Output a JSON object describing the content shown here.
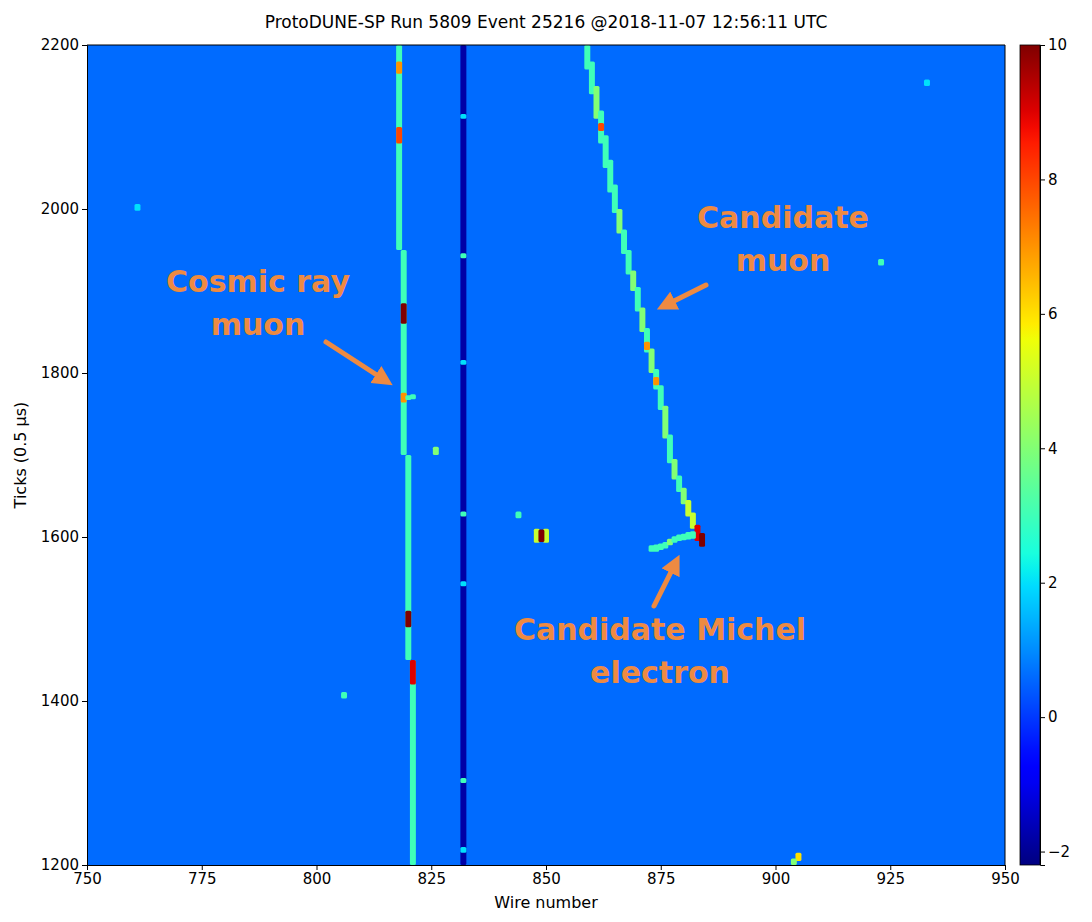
{
  "chart_data": {
    "type": "heatmap",
    "title": "ProtoDUNE-SP Run 5809 Event 25216 @2018-11-07 12:56:11 UTC",
    "x_label": "Wire number",
    "y_label": "Ticks (0.5 μs)",
    "xlim": [
      750,
      950
    ],
    "ylim": [
      1200,
      2200
    ],
    "xticks": [
      750,
      775,
      800,
      825,
      850,
      875,
      900,
      925,
      950
    ],
    "yticks": [
      1200,
      1400,
      1600,
      1800,
      2000,
      2200
    ],
    "grid": false,
    "background": 0.6,
    "colorbar": {
      "range": [
        -2.2,
        10
      ],
      "ticks": [
        {
          "value": -2,
          "label": "−2"
        },
        0,
        2,
        4,
        6,
        8,
        10
      ]
    },
    "cells": [
      {
        "wire": 818,
        "tick_start": 1950,
        "tick_end": 2200,
        "value": 3
      },
      {
        "wire": 819,
        "tick_start": 1700,
        "tick_end": 1950,
        "value": 3
      },
      {
        "wire": 820,
        "tick_start": 1450,
        "tick_end": 1700,
        "value": 3
      },
      {
        "wire": 821,
        "tick_start": 1200,
        "tick_end": 1450,
        "value": 3
      },
      {
        "wire": 818,
        "tick_start": 2080,
        "tick_end": 2100,
        "value": 8
      },
      {
        "wire": 818,
        "tick_start": 2165,
        "tick_end": 2180,
        "value": 7
      },
      {
        "wire": 819,
        "tick_start": 1860,
        "tick_end": 1885,
        "value": 10
      },
      {
        "wire": 819,
        "tick_start": 1764,
        "tick_end": 1776,
        "value": 7
      },
      {
        "wire": 820,
        "tick_start": 1767,
        "tick_end": 1773,
        "value": 3
      },
      {
        "wire": 821,
        "tick_start": 1768,
        "tick_end": 1774,
        "value": 3
      },
      {
        "wire": 820,
        "tick_start": 1490,
        "tick_end": 1510,
        "value": 10
      },
      {
        "wire": 821,
        "tick_start": 1420,
        "tick_end": 1450,
        "value": 9
      },
      {
        "wire": 826,
        "tick_start": 1700,
        "tick_end": 1710,
        "value": 4
      },
      {
        "wire": 832,
        "tick_start": 1200,
        "tick_end": 2200,
        "value": -1.8
      },
      {
        "wire": 832,
        "tick_start": 1215,
        "tick_end": 1222,
        "value": 2
      },
      {
        "wire": 832,
        "tick_start": 1300,
        "tick_end": 1306,
        "value": 3
      },
      {
        "wire": 832,
        "tick_start": 1540,
        "tick_end": 1546,
        "value": 2
      },
      {
        "wire": 832,
        "tick_start": 1625,
        "tick_end": 1631,
        "value": 3
      },
      {
        "wire": 832,
        "tick_start": 1810,
        "tick_end": 1816,
        "value": 2
      },
      {
        "wire": 832,
        "tick_start": 1940,
        "tick_end": 1946,
        "value": 3
      },
      {
        "wire": 832,
        "tick_start": 2110,
        "tick_end": 2116,
        "value": 2
      },
      {
        "wire": 859,
        "tick_start": 2170,
        "tick_end": 2200,
        "value": 3
      },
      {
        "wire": 860,
        "tick_start": 2140,
        "tick_end": 2180,
        "value": 3
      },
      {
        "wire": 861,
        "tick_start": 2110,
        "tick_end": 2150,
        "value": 4
      },
      {
        "wire": 862,
        "tick_start": 2080,
        "tick_end": 2120,
        "value": 3
      },
      {
        "wire": 863,
        "tick_start": 2050,
        "tick_end": 2090,
        "value": 3
      },
      {
        "wire": 864,
        "tick_start": 2020,
        "tick_end": 2060,
        "value": 3
      },
      {
        "wire": 865,
        "tick_start": 1995,
        "tick_end": 2030,
        "value": 3
      },
      {
        "wire": 866,
        "tick_start": 1970,
        "tick_end": 2000,
        "value": 4
      },
      {
        "wire": 867,
        "tick_start": 1945,
        "tick_end": 1975,
        "value": 3
      },
      {
        "wire": 868,
        "tick_start": 1920,
        "tick_end": 1950,
        "value": 3
      },
      {
        "wire": 869,
        "tick_start": 1900,
        "tick_end": 1925,
        "value": 4
      },
      {
        "wire": 870,
        "tick_start": 1875,
        "tick_end": 1905,
        "value": 3
      },
      {
        "wire": 871,
        "tick_start": 1850,
        "tick_end": 1880,
        "value": 4
      },
      {
        "wire": 872,
        "tick_start": 1825,
        "tick_end": 1855,
        "value": 3
      },
      {
        "wire": 873,
        "tick_start": 1800,
        "tick_end": 1830,
        "value": 4
      },
      {
        "wire": 874,
        "tick_start": 1780,
        "tick_end": 1805,
        "value": 3
      },
      {
        "wire": 875,
        "tick_start": 1755,
        "tick_end": 1785,
        "value": 3
      },
      {
        "wire": 876,
        "tick_start": 1720,
        "tick_end": 1760,
        "value": 4
      },
      {
        "wire": 877,
        "tick_start": 1690,
        "tick_end": 1725,
        "value": 3
      },
      {
        "wire": 878,
        "tick_start": 1670,
        "tick_end": 1695,
        "value": 4
      },
      {
        "wire": 879,
        "tick_start": 1655,
        "tick_end": 1675,
        "value": 3
      },
      {
        "wire": 880,
        "tick_start": 1640,
        "tick_end": 1660,
        "value": 4
      },
      {
        "wire": 881,
        "tick_start": 1625,
        "tick_end": 1645,
        "value": 5
      },
      {
        "wire": 882,
        "tick_start": 1610,
        "tick_end": 1630,
        "value": 5
      },
      {
        "wire": 883,
        "tick_start": 1595,
        "tick_end": 1615,
        "value": 9
      },
      {
        "wire": 884,
        "tick_start": 1588,
        "tick_end": 1605,
        "value": 10
      },
      {
        "wire": 862,
        "tick_start": 2095,
        "tick_end": 2105,
        "value": 8
      },
      {
        "wire": 872,
        "tick_start": 1828,
        "tick_end": 1838,
        "value": 7
      },
      {
        "wire": 874,
        "tick_start": 1785,
        "tick_end": 1795,
        "value": 7
      },
      {
        "wire": 873,
        "tick_start": 1582,
        "tick_end": 1590,
        "value": 3
      },
      {
        "wire": 874,
        "tick_start": 1582,
        "tick_end": 1591,
        "value": 3
      },
      {
        "wire": 875,
        "tick_start": 1584,
        "tick_end": 1592,
        "value": 3
      },
      {
        "wire": 876,
        "tick_start": 1586,
        "tick_end": 1594,
        "value": 3
      },
      {
        "wire": 877,
        "tick_start": 1590,
        "tick_end": 1598,
        "value": 4
      },
      {
        "wire": 878,
        "tick_start": 1593,
        "tick_end": 1601,
        "value": 3
      },
      {
        "wire": 879,
        "tick_start": 1595,
        "tick_end": 1603,
        "value": 3
      },
      {
        "wire": 880,
        "tick_start": 1596,
        "tick_end": 1604,
        "value": 3
      },
      {
        "wire": 881,
        "tick_start": 1597,
        "tick_end": 1606,
        "value": 3
      },
      {
        "wire": 882,
        "tick_start": 1598,
        "tick_end": 1607,
        "value": 3
      },
      {
        "wire": 848,
        "tick_start": 1593,
        "tick_end": 1610,
        "value": 5
      },
      {
        "wire": 850,
        "tick_start": 1593,
        "tick_end": 1610,
        "value": 5
      },
      {
        "wire": 849,
        "tick_start": 1594,
        "tick_end": 1609,
        "value": 10
      },
      {
        "wire": 844,
        "tick_start": 1623,
        "tick_end": 1631,
        "value": 3
      },
      {
        "wire": 761,
        "tick_start": 1998,
        "tick_end": 2006,
        "value": 2
      },
      {
        "wire": 806,
        "tick_start": 1403,
        "tick_end": 1411,
        "value": 3
      },
      {
        "wire": 923,
        "tick_start": 1931,
        "tick_end": 1939,
        "value": 3
      },
      {
        "wire": 933,
        "tick_start": 2150,
        "tick_end": 2158,
        "value": 2
      },
      {
        "wire": 905,
        "tick_start": 1205,
        "tick_end": 1215,
        "value": 6
      },
      {
        "wire": 904,
        "tick_start": 1200,
        "tick_end": 1208,
        "value": 4
      }
    ],
    "annotations": [
      "Cosmic ray muon",
      "Candidate muon",
      "Candidate Michel electron"
    ]
  }
}
